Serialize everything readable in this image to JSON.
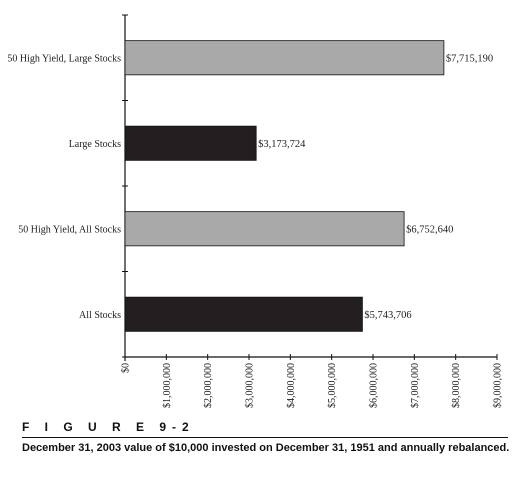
{
  "figure": {
    "label": "F I G U R E 9-2",
    "caption": "December 31, 2003 value of $10,000 invested on December 31, 1951 and annually rebalanced."
  },
  "chart_data": {
    "type": "bar",
    "orientation": "horizontal",
    "categories": [
      "50 High Yield, Large Stocks",
      "Large Stocks",
      "50 High Yield, All Stocks",
      "All Stocks"
    ],
    "values": [
      7715190,
      3173724,
      6752640,
      5743706
    ],
    "value_labels": [
      "$7,715,190",
      "$3,173,724",
      "$6,752,640",
      "$5,743,706"
    ],
    "bar_colors": [
      "#a9a9a9",
      "#231f20",
      "#a9a9a9",
      "#231f20"
    ],
    "xlim": [
      0,
      9000000
    ],
    "xticks": [
      0,
      1000000,
      2000000,
      3000000,
      4000000,
      5000000,
      6000000,
      7000000,
      8000000,
      9000000
    ],
    "xtick_labels": [
      "$0",
      "$1,000,000",
      "$2,000,000",
      "$3,000,000",
      "$4,000,000",
      "$5,000,000",
      "$6,000,000",
      "$7,000,000",
      "$8,000,000",
      "$9,000,000"
    ],
    "grid": false,
    "legend": false
  }
}
